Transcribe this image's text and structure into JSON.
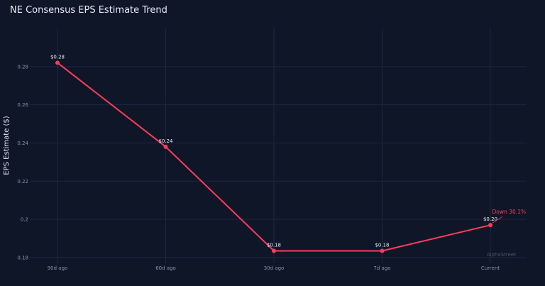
{
  "chart_data": {
    "type": "line",
    "title": "NE Consensus EPS Estimate Trend",
    "xlabel": "",
    "ylabel": "EPS Estimate ($)",
    "categories": [
      "90d ago",
      "60d ago",
      "30d ago",
      "7d ago",
      "Current"
    ],
    "series": [
      {
        "values": [
          0.282,
          0.238,
          0.1835,
          0.1835,
          0.197
        ]
      }
    ],
    "data_labels": [
      "$0.28",
      "$0.24",
      "$0.18",
      "$0.18",
      "$0.20"
    ],
    "yticks": [
      0.18,
      0.2,
      0.22,
      0.24,
      0.26,
      0.28
    ],
    "ytick_labels": [
      "0.18",
      "0.2",
      "0.22",
      "0.24",
      "0.26",
      "0.28"
    ],
    "ylim": [
      0.177,
      0.3
    ],
    "grid": true,
    "legend": "none",
    "annotation": "Down 30.1%",
    "watermark": "AlphaStreet",
    "colors": {
      "line": "#ff3b5c",
      "background": "#0f1628",
      "grid": "#1d2740"
    }
  }
}
